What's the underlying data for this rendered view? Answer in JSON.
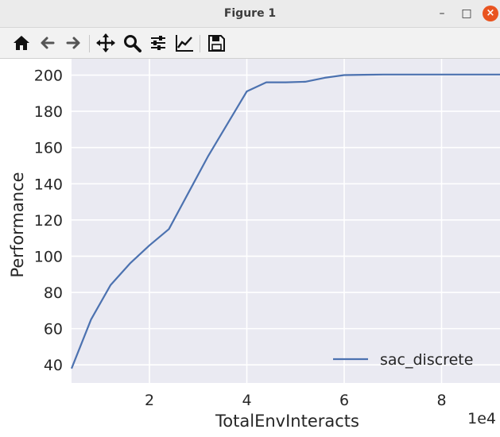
{
  "window": {
    "title": "Figure 1",
    "minimize_glyph": "–",
    "maximize_glyph": "□",
    "close_glyph": "×"
  },
  "toolbar": {
    "buttons": [
      {
        "name": "home-icon"
      },
      {
        "name": "back-arrow-icon"
      },
      {
        "name": "forward-arrow-icon"
      },
      {
        "name": "pan-move-icon"
      },
      {
        "name": "zoom-magnifier-icon"
      },
      {
        "name": "configure-subplots-icon"
      },
      {
        "name": "edit-axis-line-icon"
      },
      {
        "name": "save-floppy-icon"
      }
    ]
  },
  "chart_data": {
    "type": "line",
    "title": "",
    "xlabel": "TotalEnvInteracts",
    "ylabel": "Performance",
    "x_offset_label": "1e4",
    "xlim": [
      0.4,
      9.2
    ],
    "ylim": [
      30,
      209
    ],
    "xticks": [
      2,
      4,
      6,
      8
    ],
    "yticks": [
      40,
      60,
      80,
      100,
      120,
      140,
      160,
      180,
      200
    ],
    "grid": true,
    "background": "#eaeaf2",
    "legend_position": "lower right",
    "series": [
      {
        "name": "sac_discrete",
        "color": "#4c72b0",
        "x": [
          0.4,
          0.8,
          1.2,
          1.6,
          2.0,
          2.4,
          2.8,
          3.2,
          3.6,
          4.0,
          4.4,
          4.8,
          5.2,
          5.6,
          6.0,
          6.4,
          6.8,
          7.2,
          7.6,
          8.0,
          8.4,
          8.8,
          9.2
        ],
        "y": [
          38,
          65,
          84,
          96,
          106,
          115,
          135,
          155,
          173,
          191,
          196,
          196,
          196.3,
          198.5,
          200,
          200.2,
          200.3,
          200.3,
          200.3,
          200.3,
          200.3,
          200.3,
          200.3
        ]
      }
    ]
  }
}
